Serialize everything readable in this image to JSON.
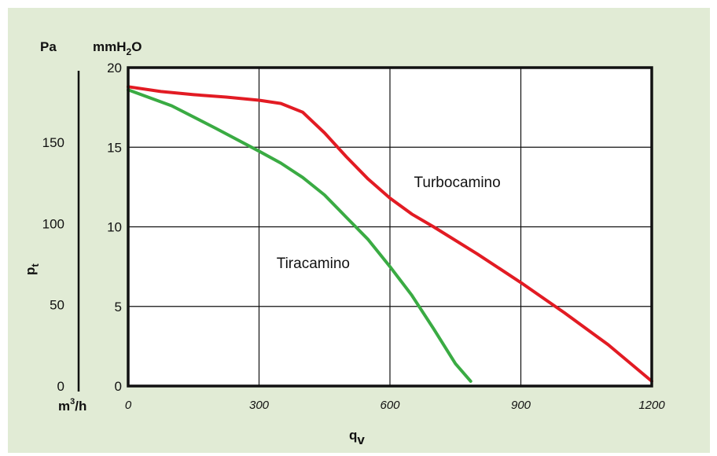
{
  "chart_data": {
    "type": "line",
    "x_axis": {
      "label_main": "q",
      "label_sub": "v",
      "unit_main": "m",
      "unit_sup": "3",
      "unit_tail": "/h",
      "range": [
        0,
        1200
      ],
      "ticks": [
        "0",
        "300",
        "600",
        "900",
        "1200"
      ],
      "tick_values": [
        0,
        300,
        600,
        900,
        1200
      ]
    },
    "y_axis_right": {
      "unit_main": "mmH",
      "unit_sub": "2",
      "unit_tail": "O",
      "range": [
        0,
        20
      ],
      "ticks": [
        "0",
        "5",
        "10",
        "15",
        "20"
      ],
      "tick_values": [
        0,
        5,
        10,
        15,
        20
      ]
    },
    "y_axis_left": {
      "label_main": "p",
      "label_sub": "t",
      "unit": "Pa",
      "ticks": [
        "0",
        "50",
        "100",
        "150"
      ],
      "tick_values_mmH2O": [
        0,
        5.1,
        10.2,
        15.3
      ]
    },
    "grid": true,
    "series": [
      {
        "name": "Turbocamino",
        "color": "#e21b23",
        "points": [
          [
            0,
            18.8
          ],
          [
            75,
            18.5
          ],
          [
            150,
            18.3
          ],
          [
            225,
            18.15
          ],
          [
            300,
            17.95
          ],
          [
            350,
            17.75
          ],
          [
            400,
            17.2
          ],
          [
            450,
            15.9
          ],
          [
            500,
            14.4
          ],
          [
            550,
            13.0
          ],
          [
            600,
            11.8
          ],
          [
            650,
            10.8
          ],
          [
            700,
            10.0
          ],
          [
            800,
            8.3
          ],
          [
            900,
            6.5
          ],
          [
            1000,
            4.6
          ],
          [
            1100,
            2.6
          ],
          [
            1200,
            0.3
          ]
        ]
      },
      {
        "name": "Tiracamino",
        "color": "#3aab43",
        "points": [
          [
            0,
            18.6
          ],
          [
            100,
            17.6
          ],
          [
            200,
            16.2
          ],
          [
            300,
            14.75
          ],
          [
            350,
            14.0
          ],
          [
            400,
            13.1
          ],
          [
            450,
            12.0
          ],
          [
            500,
            10.6
          ],
          [
            550,
            9.2
          ],
          [
            600,
            7.5
          ],
          [
            650,
            5.7
          ],
          [
            700,
            3.6
          ],
          [
            750,
            1.4
          ],
          [
            785,
            0.3
          ]
        ]
      }
    ],
    "annotations": [
      {
        "text": "Turbocamino",
        "x": 655,
        "y": 12.5
      },
      {
        "text": "Tiracamino",
        "x": 340,
        "y": 7.4
      }
    ]
  },
  "colors": {
    "panel_bg": "#e1ebd5",
    "plot_bg": "#ffffff",
    "frame": "#111111",
    "grid": "#111111"
  }
}
